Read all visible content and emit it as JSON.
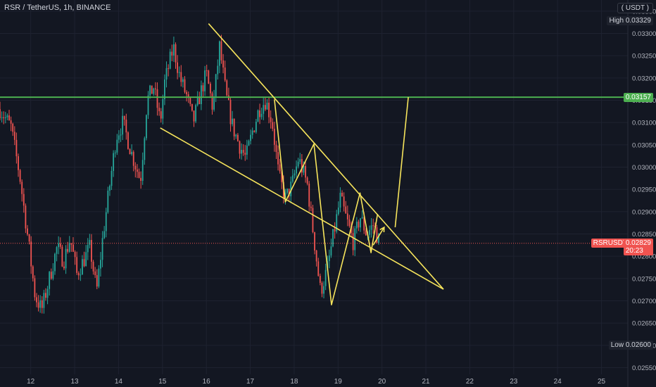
{
  "header": {
    "title": "RSR / TetherUS, 1h, BINANCE",
    "currency": "USDT"
  },
  "tags": {
    "high_label": "High",
    "high_value": "0.03329",
    "low_label": "Low",
    "low_value": "0.02600",
    "level_value": "0.03157",
    "symbol": "RSRUSDT",
    "last_price": "0.02829",
    "countdown": "20:23"
  },
  "colors": {
    "background": "#131722",
    "grid": "#1e2230",
    "up": "#26a69a",
    "down": "#ef5350",
    "trend": "#f7e55c",
    "level": "#4caf50",
    "axis_text": "#b2b5be"
  },
  "chart_data": {
    "type": "candlestick",
    "title": "RSR / TetherUS, 1h, BINANCE",
    "xlabel": "",
    "ylabel": "",
    "x_range": [
      11.3,
      25.6
    ],
    "ylim": [
      0.02535,
      0.03375
    ],
    "x_ticks": [
      12,
      13,
      14,
      15,
      16,
      17,
      18,
      19,
      20,
      21,
      22,
      23,
      24,
      25
    ],
    "x_tick_labels": [
      "12",
      "13",
      "14",
      "15",
      "16",
      "17",
      "18",
      "19",
      "20",
      "21",
      "22",
      "23",
      "24",
      "25"
    ],
    "y_ticks": [
      0.0255,
      0.026,
      0.0265,
      0.027,
      0.0275,
      0.028,
      0.0285,
      0.029,
      0.0295,
      0.03,
      0.0305,
      0.031,
      0.0315,
      0.032,
      0.0325,
      0.033,
      0.0335
    ],
    "y_tick_labels": [
      "0.02550",
      "0.02600",
      "0.02650",
      "0.02700",
      "0.02750",
      "0.02800",
      "0.02850",
      "0.02900",
      "0.02950",
      "0.03000",
      "0.03050",
      "0.03100",
      "0.03150",
      "0.03200",
      "0.03250",
      "0.03300",
      "0.03350"
    ],
    "grid": true,
    "price_path": {
      "x": [
        11.3,
        11.55,
        11.75,
        11.95,
        12.1,
        12.25,
        12.45,
        12.6,
        12.75,
        12.9,
        13.05,
        13.2,
        13.35,
        13.5,
        13.65,
        13.8,
        13.95,
        14.1,
        14.3,
        14.5,
        14.65,
        14.8,
        14.95,
        15.05,
        15.25,
        15.4,
        15.55,
        15.7,
        15.85,
        16.0,
        16.15,
        16.3,
        16.45,
        16.6,
        16.75,
        16.9,
        17.05,
        17.2,
        17.35,
        17.5,
        17.65,
        17.8,
        17.95,
        18.1,
        18.3,
        18.45,
        18.6,
        18.75,
        18.9,
        19.05,
        19.2,
        19.35,
        19.5,
        19.65,
        19.8,
        19.95
      ],
      "close": [
        0.0313,
        0.0309,
        0.0298,
        0.0283,
        0.0271,
        0.0268,
        0.0276,
        0.0282,
        0.0279,
        0.0284,
        0.0276,
        0.0279,
        0.0282,
        0.0272,
        0.0285,
        0.0296,
        0.0307,
        0.031,
        0.0303,
        0.0297,
        0.0315,
        0.0318,
        0.031,
        0.0319,
        0.0327,
        0.032,
        0.0316,
        0.031,
        0.0316,
        0.0321,
        0.0313,
        0.0327,
        0.0316,
        0.0309,
        0.0305,
        0.0302,
        0.0308,
        0.0313,
        0.0315,
        0.031,
        0.0298,
        0.0293,
        0.0296,
        0.0302,
        0.0296,
        0.0284,
        0.0272,
        0.0277,
        0.0285,
        0.0293,
        0.0288,
        0.0283,
        0.0289,
        0.0285,
        0.0287,
        0.0283
      ]
    },
    "series": [
      {
        "type": "horizontal_line",
        "y": 0.03157,
        "x_from": 11.3,
        "x_to": 25.6,
        "color": "#4caf50"
      },
      {
        "type": "horizontal_line",
        "y": 0.02829,
        "x_from": 11.3,
        "x_to": 25.6,
        "color": "#f05350",
        "style": "dotted"
      },
      {
        "type": "trendline",
        "x": [
          16.05,
          21.4
        ],
        "y": [
          0.03322,
          0.02726
        ],
        "color": "#f7e55c"
      },
      {
        "type": "trendline",
        "x": [
          14.95,
          21.4
        ],
        "y": [
          0.03088,
          0.02726
        ],
        "color": "#f7e55c"
      },
      {
        "type": "polyline",
        "x": [
          17.55,
          17.8,
          18.45,
          18.85,
          19.5,
          19.75,
          19.9
        ],
        "y": [
          0.03152,
          0.02922,
          0.03052,
          0.02691,
          0.02942,
          0.02808,
          0.02895
        ],
        "color": "#f7e55c"
      },
      {
        "type": "polyline",
        "x": [
          20.3,
          20.6
        ],
        "y": [
          0.02865,
          0.03157
        ],
        "color": "#f7e55c"
      },
      {
        "type": "arrow",
        "x": [
          19.8,
          20.05
        ],
        "y": [
          0.02825,
          0.02865
        ],
        "color": "#f7e55c"
      }
    ]
  }
}
